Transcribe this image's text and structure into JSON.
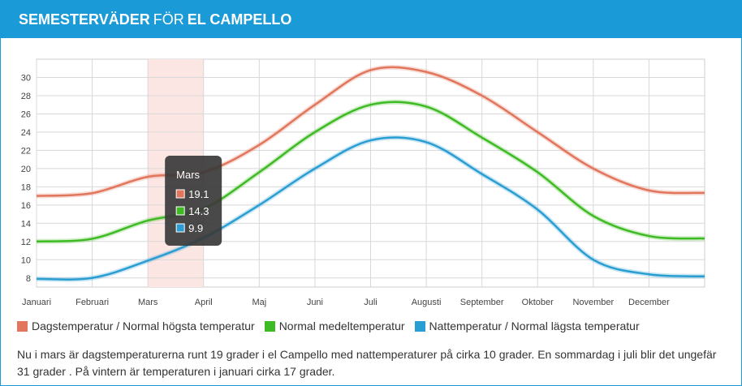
{
  "header": {
    "title_bold_1": "SEMESTERVÄDER",
    "title_light": "FÖR",
    "title_bold_2": "EL CAMPELLO"
  },
  "colors": {
    "accent": "#1a9ad6",
    "day": "#e2765d",
    "mean": "#3ebb23",
    "night": "#2a9ed3",
    "highlight": "#fce6e3",
    "tooltip_bg": "#3a3a3a"
  },
  "chart_data": {
    "type": "line",
    "categories": [
      "Januari",
      "Februari",
      "Mars",
      "April",
      "Maj",
      "Juni",
      "Juli",
      "Augusti",
      "September",
      "Oktober",
      "November",
      "December"
    ],
    "series": [
      {
        "name": "Dagstemperatur / Normal högsta temperatur",
        "color": "#e2765d",
        "values": [
          17.0,
          17.3,
          19.1,
          19.6,
          22.6,
          27.0,
          30.8,
          30.6,
          28.0,
          24.0,
          20.0,
          17.6
        ]
      },
      {
        "name": "Normal medeltemperatur",
        "color": "#3ebb23",
        "values": [
          12.0,
          12.3,
          14.3,
          15.6,
          19.6,
          24.0,
          27.0,
          26.8,
          23.4,
          19.6,
          14.8,
          12.6
        ]
      },
      {
        "name": "Nattemperatur / Normal lägsta temperatur",
        "color": "#2a9ed3",
        "values": [
          7.9,
          8.0,
          9.9,
          12.4,
          16.0,
          20.0,
          23.1,
          22.9,
          19.4,
          15.5,
          10.0,
          8.4
        ]
      }
    ],
    "yticks": [
      8,
      10,
      12,
      14,
      16,
      18,
      20,
      22,
      24,
      26,
      28,
      30
    ],
    "ylim": [
      7,
      32
    ],
    "grid": true,
    "highlight_category": "Mars",
    "tooltip": {
      "title": "Mars",
      "values": [
        "19.1",
        "14.3",
        "9.9"
      ]
    },
    "legend_position": "bottom-left"
  },
  "legend": [
    {
      "label": "Dagstemperatur / Normal högsta temperatur",
      "color": "#e2765d"
    },
    {
      "label": "Normal medeltemperatur",
      "color": "#3ebb23"
    },
    {
      "label": "Nattemperatur / Normal lägsta temperatur",
      "color": "#2a9ed3"
    }
  ],
  "description": "Nu i mars är dagstemperaturerna runt 19 grader i el Campello med nattemperaturer på cirka 10 grader. En sommardag i juli blir det ungefär 31 grader . På vintern är temperaturen i januari cirka 17 grader."
}
